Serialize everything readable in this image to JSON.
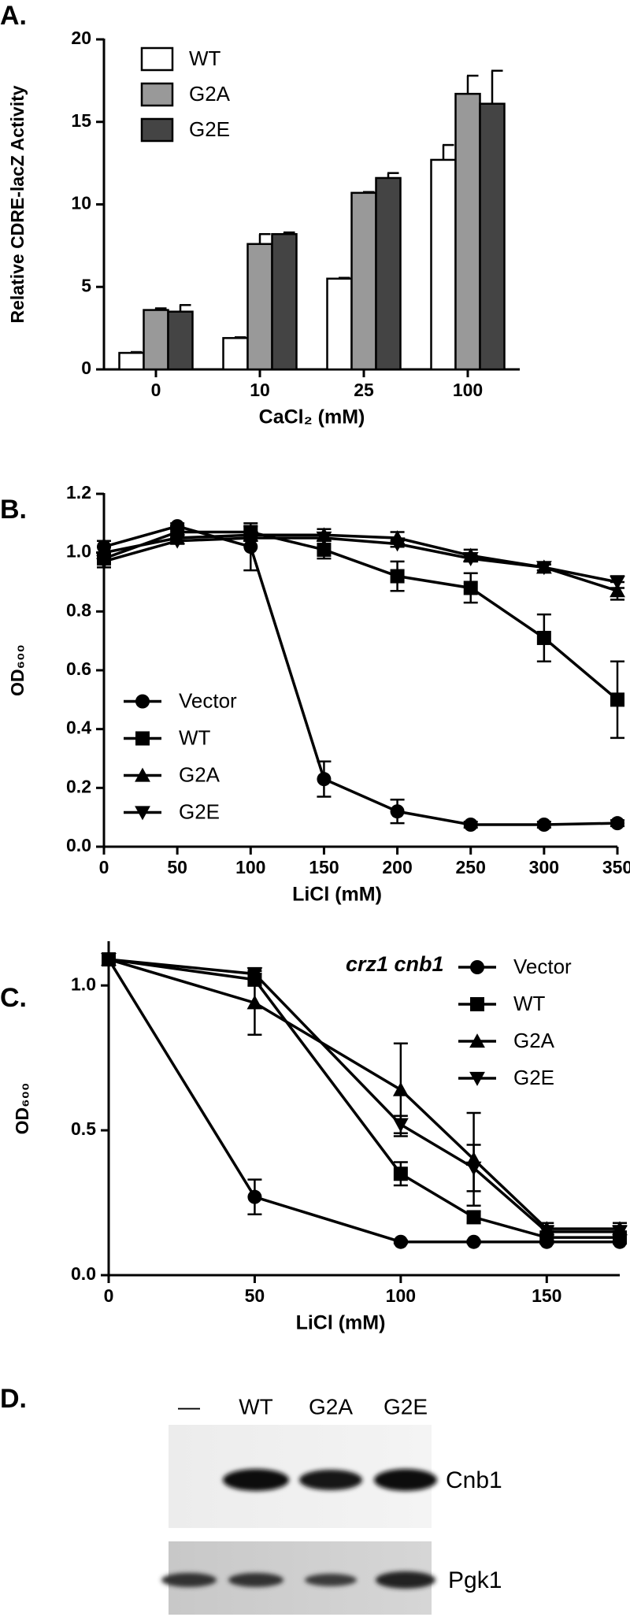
{
  "chart_data": [
    {
      "type": "bar",
      "panel_label": "A.",
      "y_label": "Relative CDRE-lacZ Activity",
      "x_label": "CaCl₂ (mM)",
      "categories": [
        "0",
        "10",
        "25",
        "100"
      ],
      "series": [
        {
          "name": "WT",
          "color": "#ffffff",
          "values": [
            1.0,
            1.9,
            5.5,
            12.7
          ],
          "errors": [
            0.05,
            0.05,
            0.05,
            0.9
          ]
        },
        {
          "name": "G2A",
          "color": "#999999",
          "values": [
            3.6,
            7.6,
            10.7,
            16.7
          ],
          "errors": [
            0.1,
            0.6,
            0.05,
            1.1
          ]
        },
        {
          "name": "G2E",
          "color": "#444444",
          "values": [
            3.5,
            8.2,
            11.6,
            16.1
          ],
          "errors": [
            0.4,
            0.1,
            0.3,
            2.0
          ]
        }
      ],
      "ylim": [
        0,
        20
      ],
      "yticks": [
        0,
        5,
        10,
        15,
        20
      ],
      "legend": "upper left"
    },
    {
      "type": "line",
      "panel_label": "B.",
      "y_label": "OD₆₀₀",
      "x_label": "LiCl (mM)",
      "x": [
        0,
        50,
        100,
        150,
        200,
        250,
        300,
        350
      ],
      "series": [
        {
          "name": "Vector",
          "color": "#000000",
          "marker": "circle",
          "values": [
            1.02,
            1.09,
            1.02,
            0.23,
            0.12,
            0.075,
            0.075,
            0.08
          ],
          "errors": [
            0.02,
            0.01,
            0.08,
            0.06,
            0.04,
            0.01,
            0.01,
            0.01
          ]
        },
        {
          "name": "WT",
          "color": "#000000",
          "marker": "square",
          "values": [
            0.98,
            1.07,
            1.07,
            1.01,
            0.92,
            0.88,
            0.71,
            0.5
          ],
          "errors": [
            0.02,
            0.02,
            0.02,
            0.03,
            0.05,
            0.05,
            0.08,
            0.13
          ]
        },
        {
          "name": "G2A",
          "color": "#000000",
          "marker": "triangle-up",
          "values": [
            1.0,
            1.05,
            1.06,
            1.06,
            1.05,
            0.99,
            0.95,
            0.87
          ],
          "errors": [
            0.02,
            0.01,
            0.01,
            0.02,
            0.02,
            0.02,
            0.01,
            0.03
          ]
        },
        {
          "name": "G2E",
          "color": "#000000",
          "marker": "triangle-down",
          "values": [
            0.97,
            1.04,
            1.05,
            1.05,
            1.03,
            0.98,
            0.95,
            0.9
          ],
          "errors": [
            0.02,
            0.01,
            0.01,
            0.01,
            0.01,
            0.01,
            0.01,
            0.02
          ]
        }
      ],
      "xlim": [
        0,
        350
      ],
      "xticks": [
        0,
        50,
        100,
        150,
        200,
        250,
        300,
        350
      ],
      "ylim": [
        0,
        1.2
      ],
      "yticks": [
        {
          "value": 0,
          "label": "0.0"
        },
        0.2,
        0.4,
        0.6,
        0.8,
        {
          "value": 1,
          "label": "1.0"
        },
        1.2
      ],
      "legend": "lower left"
    },
    {
      "type": "line",
      "panel_label": "C.",
      "y_label": "OD₆₀₀",
      "x_label": "LiCl (mM)",
      "annotation": "crz1 cnb1",
      "x": [
        0,
        50,
        100,
        125,
        150,
        175
      ],
      "series": [
        {
          "name": "Vector",
          "color": "#000000",
          "marker": "circle",
          "values": [
            1.09,
            0.27,
            0.115,
            0.115,
            0.115,
            0.115
          ],
          "errors": [
            0.01,
            0.06,
            0.005,
            0.005,
            0.005,
            0.005
          ]
        },
        {
          "name": "WT",
          "color": "#000000",
          "marker": "square",
          "values": [
            1.09,
            1.02,
            0.35,
            0.2,
            0.13,
            0.13
          ],
          "errors": [
            0.01,
            0.02,
            0.04,
            0.02,
            0.01,
            0.01
          ]
        },
        {
          "name": "G2A",
          "color": "#000000",
          "marker": "triangle-up",
          "values": [
            1.09,
            0.94,
            0.64,
            0.4,
            0.16,
            0.16
          ],
          "errors": [
            0.01,
            0.11,
            0.16,
            0.16,
            0.02,
            0.02
          ]
        },
        {
          "name": "G2E",
          "color": "#000000",
          "marker": "triangle-down",
          "values": [
            1.09,
            1.04,
            0.52,
            0.37,
            0.15,
            0.15
          ],
          "errors": [
            0.01,
            0.02,
            0.03,
            0.08,
            0.02,
            0.02
          ]
        }
      ],
      "xlim": [
        0,
        175
      ],
      "xticks": [
        0,
        50,
        100,
        150
      ],
      "ylim": [
        0,
        1.15
      ],
      "yticks": [
        {
          "value": 0,
          "label": "0.0"
        },
        0.5,
        {
          "value": 1,
          "label": "1.0"
        }
      ],
      "legend": "upper right"
    }
  ],
  "blot": {
    "panel_label": "D.",
    "lanes": [
      "—",
      "WT",
      "G2A",
      "G2E"
    ],
    "bands": [
      "Cnb1",
      "Pgk1"
    ]
  }
}
